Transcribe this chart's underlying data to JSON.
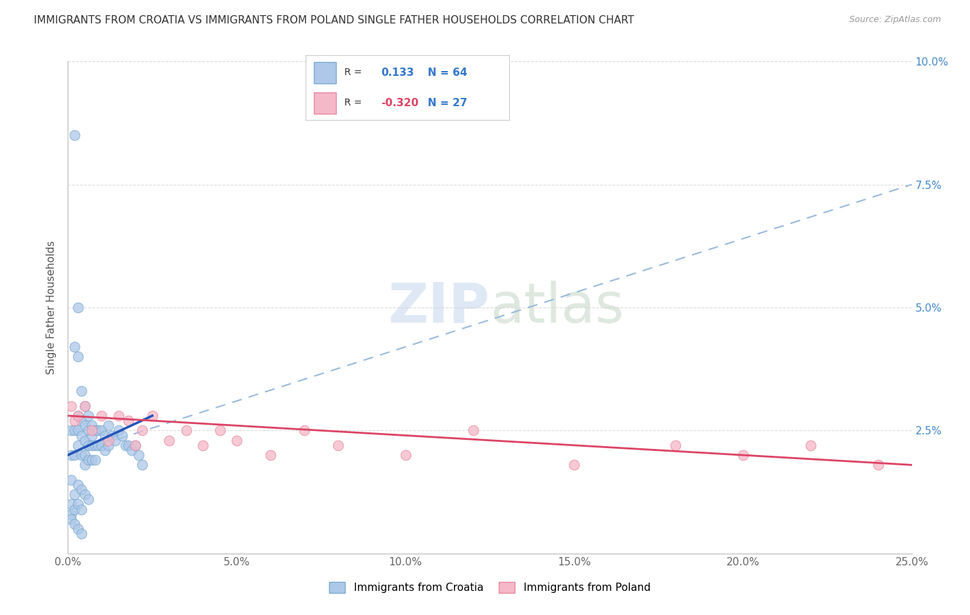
{
  "title": "IMMIGRANTS FROM CROATIA VS IMMIGRANTS FROM POLAND SINGLE FATHER HOUSEHOLDS CORRELATION CHART",
  "source": "Source: ZipAtlas.com",
  "ylabel": "Single Father Households",
  "xlim": [
    0.0,
    0.25
  ],
  "ylim": [
    0.0,
    0.1
  ],
  "xtick_vals": [
    0.0,
    0.05,
    0.1,
    0.15,
    0.2,
    0.25
  ],
  "xtick_labels": [
    "0.0%",
    "5.0%",
    "10.0%",
    "15.0%",
    "20.0%",
    "25.0%"
  ],
  "ytick_vals": [
    0.0,
    0.025,
    0.05,
    0.075,
    0.1
  ],
  "ytick_right_labels": [
    "",
    "2.5%",
    "5.0%",
    "7.5%",
    "10.0%"
  ],
  "croatia_color": "#adc8e8",
  "croatia_edge_color": "#7aaad0",
  "poland_color": "#f5b8c8",
  "poland_edge_color": "#e888a0",
  "trend_croatia_color": "#2255bb",
  "trend_poland_color": "#dd4466",
  "dashed_line_color": "#99bbdd",
  "background_color": "#ffffff",
  "legend_croatia": "Immigrants from Croatia",
  "legend_poland": "Immigrants from Poland",
  "croatia_x": [
    0.001,
    0.001,
    0.001,
    0.002,
    0.002,
    0.002,
    0.002,
    0.003,
    0.003,
    0.003,
    0.003,
    0.003,
    0.004,
    0.004,
    0.004,
    0.004,
    0.005,
    0.005,
    0.005,
    0.005,
    0.005,
    0.006,
    0.006,
    0.006,
    0.006,
    0.007,
    0.007,
    0.007,
    0.007,
    0.008,
    0.008,
    0.008,
    0.009,
    0.009,
    0.01,
    0.01,
    0.011,
    0.011,
    0.012,
    0.012,
    0.013,
    0.014,
    0.015,
    0.016,
    0.017,
    0.018,
    0.019,
    0.02,
    0.021,
    0.022,
    0.001,
    0.002,
    0.003,
    0.004,
    0.005,
    0.006,
    0.001,
    0.002,
    0.003,
    0.004,
    0.001,
    0.002,
    0.003,
    0.004
  ],
  "croatia_y": [
    0.025,
    0.02,
    0.015,
    0.085,
    0.042,
    0.025,
    0.02,
    0.05,
    0.04,
    0.028,
    0.025,
    0.022,
    0.033,
    0.027,
    0.024,
    0.02,
    0.03,
    0.026,
    0.023,
    0.02,
    0.018,
    0.028,
    0.025,
    0.022,
    0.019,
    0.026,
    0.024,
    0.022,
    0.019,
    0.025,
    0.022,
    0.019,
    0.025,
    0.022,
    0.025,
    0.022,
    0.024,
    0.021,
    0.026,
    0.022,
    0.024,
    0.023,
    0.025,
    0.024,
    0.022,
    0.022,
    0.021,
    0.022,
    0.02,
    0.018,
    0.01,
    0.012,
    0.014,
    0.013,
    0.012,
    0.011,
    0.008,
    0.009,
    0.01,
    0.009,
    0.007,
    0.006,
    0.005,
    0.004
  ],
  "poland_x": [
    0.001,
    0.002,
    0.003,
    0.005,
    0.007,
    0.01,
    0.012,
    0.015,
    0.018,
    0.02,
    0.022,
    0.025,
    0.03,
    0.035,
    0.04,
    0.045,
    0.05,
    0.06,
    0.07,
    0.08,
    0.1,
    0.12,
    0.15,
    0.18,
    0.2,
    0.22,
    0.24
  ],
  "poland_y": [
    0.03,
    0.027,
    0.028,
    0.03,
    0.025,
    0.028,
    0.023,
    0.028,
    0.027,
    0.022,
    0.025,
    0.028,
    0.023,
    0.025,
    0.022,
    0.025,
    0.023,
    0.02,
    0.025,
    0.022,
    0.02,
    0.025,
    0.018,
    0.022,
    0.02,
    0.022,
    0.018
  ],
  "trend_c_x0": 0.0,
  "trend_c_x1": 0.025,
  "trend_c_y0": 0.02,
  "trend_c_y1": 0.028,
  "trend_c_dash_x0": 0.0,
  "trend_c_dash_x1": 0.25,
  "trend_c_dash_y0": 0.02,
  "trend_c_dash_y1": 0.075,
  "trend_p_x0": 0.0,
  "trend_p_x1": 0.25,
  "trend_p_y0": 0.028,
  "trend_p_y1": 0.018
}
